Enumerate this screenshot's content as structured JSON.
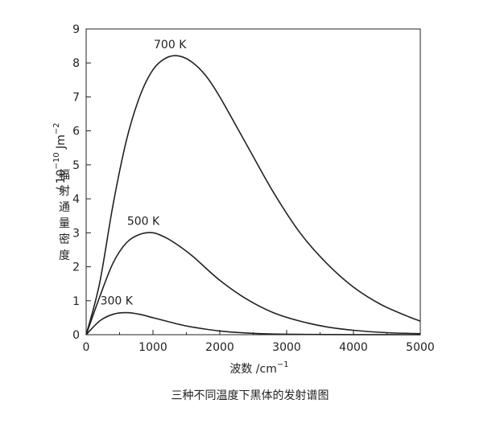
{
  "caption": "三种不同温度下黑体的发射谱图",
  "chart_data": {
    "type": "line",
    "xlabel": {
      "text": "波数 /cm",
      "sup": "−1"
    },
    "ylabel": {
      "cjk": [
        "辐",
        "射",
        "通",
        "量",
        "密",
        "度"
      ],
      "prefix": "/ 10",
      "exp": "−10",
      "unit": " Jm",
      "unit_exp": "−2"
    },
    "xlim": [
      0,
      5000
    ],
    "ylim": [
      0,
      9
    ],
    "x_ticks": [
      0,
      1000,
      2000,
      3000,
      4000,
      5000
    ],
    "y_ticks": [
      0,
      1,
      2,
      3,
      4,
      5,
      6,
      7,
      8,
      9
    ],
    "grid": false,
    "series": [
      {
        "name": "700 K",
        "x": [
          0,
          200,
          400,
          600,
          800,
          1000,
          1200,
          1400,
          1600,
          1800,
          2000,
          2400,
          2800,
          3200,
          3600,
          4000,
          4400,
          4800,
          5000
        ],
        "y": [
          0,
          1.5,
          3.8,
          5.7,
          7.0,
          7.8,
          8.15,
          8.2,
          8.0,
          7.6,
          7.0,
          5.6,
          4.2,
          3.0,
          2.1,
          1.4,
          0.9,
          0.55,
          0.4
        ]
      },
      {
        "name": "500 K",
        "x": [
          0,
          200,
          400,
          600,
          800,
          1000,
          1200,
          1400,
          1600,
          2000,
          2400,
          2800,
          3200,
          3600,
          4000,
          4500,
          5000
        ],
        "y": [
          0,
          1.1,
          2.1,
          2.7,
          2.95,
          3.0,
          2.85,
          2.6,
          2.3,
          1.6,
          1.05,
          0.65,
          0.4,
          0.23,
          0.13,
          0.06,
          0.03
        ]
      },
      {
        "name": "300 K",
        "x": [
          0,
          200,
          400,
          600,
          800,
          1000,
          1200,
          1400,
          1600,
          2000,
          2400,
          2800,
          3200,
          3600,
          4000,
          5000
        ],
        "y": [
          0,
          0.4,
          0.6,
          0.65,
          0.6,
          0.5,
          0.4,
          0.3,
          0.22,
          0.11,
          0.05,
          0.02,
          0.01,
          0.005,
          0.002,
          0
        ]
      }
    ]
  }
}
